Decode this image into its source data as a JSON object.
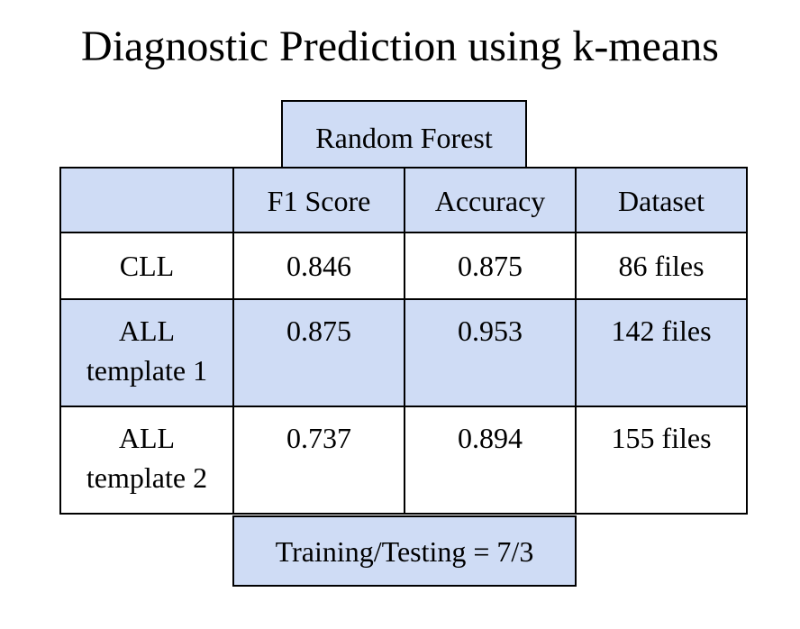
{
  "title": "Diagnostic Prediction using k-means",
  "model_label": "Random Forest",
  "columns": [
    "",
    "F1 Score",
    "Accuracy",
    "Dataset"
  ],
  "rows": [
    {
      "label_lines": [
        "CLL"
      ],
      "f1": "0.846",
      "accuracy": "0.875",
      "dataset": "86 files"
    },
    {
      "label_lines": [
        "ALL",
        "template 1"
      ],
      "f1": "0.875",
      "accuracy": "0.953",
      "dataset": "142 files"
    },
    {
      "label_lines": [
        "ALL",
        "template 2"
      ],
      "f1": "0.737",
      "accuracy": "0.894",
      "dataset": "155 files"
    }
  ],
  "split_label": "Training/Testing = 7/3",
  "colors": {
    "highlight": "#cfdcf5",
    "background": "#ffffff",
    "border": "#000000"
  }
}
